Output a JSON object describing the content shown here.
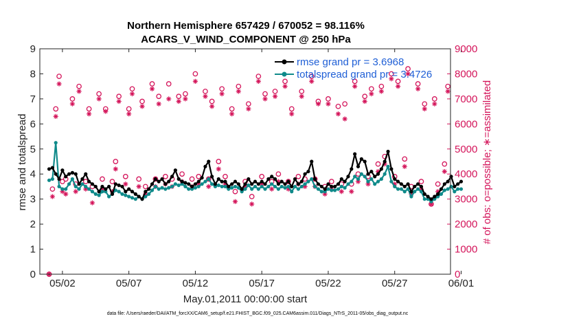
{
  "chart_data": {
    "type": "line",
    "title": [
      "Northern Hemisphere 657429 / 670052 = 98.116%",
      "ACARS_V_WIND_COMPONENT @ 250 hPa"
    ],
    "xlabel": "May.01,2011 00:00:00 start",
    "ylabel_left": "rmse and totalspread",
    "ylabel_right": "# of obs: o=possible; ∗=assimilated",
    "footer": "data file: /Users/raeder/DAI/ATM_forcXX/CAM6_setup/f.e21.FHIST_BGC.f09_025.CAM6assim.011/Diags_NTrS_2011-05/obs_diag_output.nc",
    "xlim": [
      0.3,
      31.2
    ],
    "ylim_left": [
      0,
      9
    ],
    "ylim_right": [
      0,
      9000
    ],
    "x_ticks": [
      2,
      7,
      12,
      17,
      22,
      27,
      32
    ],
    "x_tick_labels": [
      "05/02",
      "05/07",
      "05/12",
      "05/17",
      "05/22",
      "05/27",
      "06/01"
    ],
    "y_ticks_left": [
      "0",
      "1",
      "2",
      "3",
      "4",
      "5",
      "6",
      "7",
      "8",
      "9"
    ],
    "y_ticks_right": [
      "0",
      "1000",
      "2000",
      "3000",
      "4000",
      "5000",
      "6000",
      "7000",
      "8000",
      "9000"
    ],
    "colors": {
      "rmse": "#000000",
      "spread": "#0f8a8a",
      "obs": "#d4145a",
      "legend_text": "#1f5fd6"
    },
    "legend": [
      {
        "name": "rmse grand pr = 3.6968",
        "color": "#000000"
      },
      {
        "name": "totalspread grand pr = 3.4726",
        "color": "#0f8a8a"
      }
    ],
    "x_start": 1.0,
    "x_step": 0.25,
    "series": [
      {
        "name": "rmse",
        "color": "#000000",
        "values": [
          4.2,
          4.25,
          4.0,
          3.8,
          4.15,
          3.9,
          4.0,
          4.05,
          4.0,
          3.6,
          3.8,
          4.0,
          3.7,
          3.6,
          3.5,
          3.3,
          3.5,
          3.4,
          3.5,
          3.2,
          3.6,
          3.55,
          3.5,
          3.3,
          3.4,
          3.3,
          3.2,
          3.1,
          3.0,
          3.3,
          3.4,
          3.6,
          3.8,
          3.7,
          3.8,
          3.6,
          3.7,
          3.9,
          4.15,
          3.8,
          3.7,
          3.65,
          3.6,
          3.5,
          3.6,
          3.7,
          3.85,
          4.3,
          4.5,
          3.9,
          3.6,
          3.8,
          3.7,
          3.7,
          3.5,
          3.6,
          3.7,
          3.6,
          3.4,
          3.6,
          3.8,
          3.6,
          3.7,
          3.6,
          3.7,
          3.6,
          3.8,
          3.9,
          3.8,
          3.6,
          3.7,
          3.6,
          3.7,
          3.5,
          3.8,
          3.6,
          3.7,
          4.0,
          4.1,
          4.5,
          3.8,
          3.6,
          3.5,
          3.4,
          3.6,
          3.5,
          3.5,
          3.6,
          3.8,
          3.7,
          3.9,
          4.2,
          4.8,
          4.3,
          4.6,
          4.5,
          4.0,
          4.1,
          3.9,
          4.0,
          4.2,
          4.5,
          4.9,
          4.2,
          3.8,
          3.7,
          3.6,
          3.5,
          3.6,
          3.3,
          3.5,
          3.6,
          3.5,
          3.2,
          3.1,
          3.0,
          3.1,
          3.2,
          3.4,
          3.6,
          3.7,
          3.9,
          3.5,
          3.6,
          3.7
        ]
      },
      {
        "name": "totalspread",
        "color": "#0f8a8a",
        "values": [
          3.75,
          3.8,
          5.25,
          3.5,
          3.4,
          3.4,
          3.6,
          3.8,
          3.5,
          3.4,
          3.6,
          3.5,
          3.4,
          3.3,
          3.2,
          3.15,
          3.3,
          3.3,
          3.1,
          3.2,
          3.35,
          3.3,
          3.2,
          3.15,
          3.1,
          3.05,
          3.0,
          3.1,
          3.0,
          3.1,
          3.2,
          3.35,
          3.5,
          3.4,
          3.45,
          3.4,
          3.45,
          3.5,
          3.6,
          3.55,
          3.6,
          3.5,
          3.4,
          3.4,
          3.45,
          3.5,
          3.6,
          3.7,
          3.8,
          3.6,
          3.5,
          3.55,
          3.5,
          3.5,
          3.4,
          3.45,
          3.5,
          3.45,
          3.3,
          3.4,
          3.55,
          3.4,
          3.5,
          3.4,
          3.5,
          3.4,
          3.5,
          3.6,
          3.5,
          3.4,
          3.5,
          3.45,
          3.5,
          3.3,
          3.5,
          3.4,
          3.5,
          3.6,
          3.7,
          3.8,
          3.5,
          3.4,
          3.3,
          3.3,
          3.4,
          3.35,
          3.35,
          3.4,
          3.5,
          3.45,
          3.6,
          3.7,
          3.9,
          3.8,
          4.0,
          3.9,
          3.7,
          3.8,
          3.6,
          3.7,
          3.8,
          4.0,
          4.3,
          3.7,
          3.5,
          3.4,
          3.4,
          3.3,
          3.4,
          3.1,
          3.3,
          3.4,
          3.3,
          3.0,
          3.0,
          2.9,
          3.0,
          3.1,
          3.2,
          3.35,
          3.4,
          3.5,
          3.3,
          3.4,
          3.4
        ]
      }
    ],
    "obs_possible": {
      "x": [
        1.0,
        1.25,
        1.5,
        1.75,
        2.0,
        2.25,
        2.75,
        3.0,
        3.25,
        3.75,
        4.0,
        4.25,
        4.75,
        5.0,
        5.25,
        5.75,
        6.0,
        6.25,
        6.75,
        7.0,
        7.25,
        7.75,
        8.0,
        8.25,
        8.75,
        9.0,
        9.25,
        9.75,
        10.0,
        10.25,
        10.75,
        11.0,
        11.25,
        11.75,
        12.0,
        12.25,
        12.75,
        13.0,
        13.25,
        13.75,
        14.0,
        14.25,
        14.75,
        15.0,
        15.25,
        15.75,
        16.0,
        16.25,
        16.75,
        17.0,
        17.25,
        17.75,
        18.0,
        18.25,
        18.75,
        19.0,
        19.25,
        19.75,
        20.0,
        20.25,
        20.75,
        21.0,
        21.25,
        21.75,
        22.0,
        22.25,
        22.75,
        23.0,
        23.25,
        23.75,
        24.0,
        24.25,
        24.75,
        25.0,
        25.25,
        25.75,
        26.0,
        26.25,
        26.75,
        27.0,
        27.25,
        27.75,
        28.0,
        28.25,
        28.75,
        29.0,
        29.25,
        29.75,
        30.0,
        30.25,
        30.75,
        31.0
      ],
      "values": [
        0,
        3400,
        6600,
        7900,
        3700,
        3800,
        7000,
        3600,
        7500,
        3700,
        6600,
        3500,
        7200,
        3800,
        6600,
        3700,
        4500,
        7100,
        3900,
        6600,
        7400,
        3800,
        6900,
        3500,
        7600,
        3800,
        7100,
        3900,
        7600,
        3800,
        7100,
        4000,
        7200,
        3800,
        8000,
        3900,
        7300,
        3800,
        6900,
        4500,
        7400,
        3900,
        6600,
        3300,
        7500,
        3700,
        6800,
        3100,
        7900,
        3900,
        7200,
        3700,
        7300,
        4000,
        7700,
        3700,
        6600,
        3900,
        7300,
        3800,
        7900,
        3800,
        6900,
        3500,
        7000,
        3700,
        6700,
        3600,
        6800,
        3600,
        7700,
        4000,
        7100,
        3900,
        7400,
        4400,
        7500,
        4700,
        8000,
        3900,
        7700,
        4600,
        8200,
        3500,
        7600,
        3700,
        6800,
        2800,
        7000,
        3600,
        4400,
        7500
      ]
    },
    "obs_assimilated": {
      "x": [
        1.0,
        1.25,
        1.5,
        1.75,
        2.0,
        2.25,
        2.75,
        3.0,
        3.25,
        3.75,
        4.0,
        4.25,
        4.75,
        5.0,
        5.25,
        5.75,
        6.0,
        6.25,
        6.75,
        7.0,
        7.25,
        7.75,
        8.0,
        8.25,
        8.75,
        9.0,
        9.25,
        9.75,
        10.0,
        10.25,
        10.75,
        11.0,
        11.25,
        11.75,
        12.0,
        12.25,
        12.75,
        13.0,
        13.25,
        13.75,
        14.0,
        14.25,
        14.75,
        15.0,
        15.25,
        15.75,
        16.0,
        16.25,
        16.75,
        17.0,
        17.25,
        17.75,
        18.0,
        18.25,
        18.75,
        19.0,
        19.25,
        19.75,
        20.0,
        20.25,
        20.75,
        21.0,
        21.25,
        21.75,
        22.0,
        22.25,
        22.75,
        23.0,
        23.25,
        23.75,
        24.0,
        24.25,
        24.75,
        25.0,
        25.25,
        25.75,
        26.0,
        26.25,
        26.75,
        27.0,
        27.25,
        27.75,
        28.0,
        28.25,
        28.75,
        29.0,
        29.25,
        29.75,
        30.0,
        30.25,
        30.75,
        31.0
      ],
      "values": [
        0,
        3100,
        6300,
        7600,
        3300,
        3200,
        6800,
        3300,
        7300,
        3400,
        6400,
        2850,
        7000,
        3400,
        6500,
        3300,
        4200,
        6900,
        3600,
        6400,
        7200,
        3500,
        6700,
        3200,
        7400,
        3500,
        6800,
        3600,
        7000,
        3500,
        6900,
        3700,
        7000,
        3500,
        7700,
        3600,
        7100,
        3500,
        6700,
        4200,
        7200,
        3600,
        6400,
        2900,
        7300,
        3500,
        6600,
        2800,
        7700,
        3600,
        7000,
        3400,
        7100,
        3700,
        7500,
        3400,
        6400,
        3600,
        7100,
        3500,
        7700,
        3500,
        6800,
        3200,
        6800,
        3400,
        6400,
        3300,
        6200,
        3300,
        7500,
        3700,
        6900,
        3600,
        7200,
        4100,
        7300,
        4400,
        7800,
        3600,
        7500,
        4300,
        8000,
        3200,
        7400,
        3400,
        6600,
        2800,
        6800,
        3300,
        4100,
        7300
      ]
    }
  }
}
